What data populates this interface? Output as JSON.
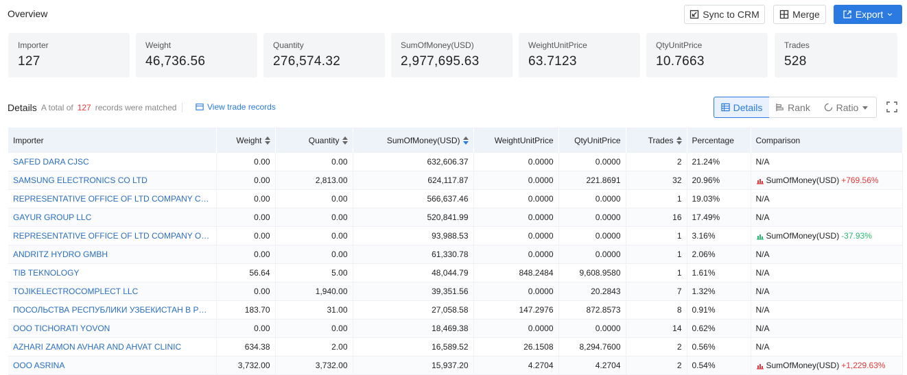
{
  "header": {
    "title": "Overview",
    "sync_label": "Sync to CRM",
    "merge_label": "Merge",
    "export_label": "Export"
  },
  "cards": [
    {
      "label": "Importer",
      "value": "127"
    },
    {
      "label": "Weight",
      "value": "46,736.56"
    },
    {
      "label": "Quantity",
      "value": "276,574.32"
    },
    {
      "label": "SumOfMoney(USD)",
      "value": "2,977,695.63"
    },
    {
      "label": "WeightUnitPrice",
      "value": "63.7123"
    },
    {
      "label": "QtyUnitPrice",
      "value": "10.7663"
    },
    {
      "label": "Trades",
      "value": "528"
    }
  ],
  "details": {
    "title": "Details",
    "total_prefix": "A total of",
    "total_count": "127",
    "total_suffix": "records were matched",
    "view_link": "View trade records",
    "tab_details": "Details",
    "tab_rank": "Rank",
    "tab_ratio": "Ratio"
  },
  "table": {
    "columns": [
      "Importer",
      "Weight",
      "Quantity",
      "SumOfMoney(USD)",
      "WeightUnitPrice",
      "QtyUnitPrice",
      "Trades",
      "Percentage",
      "Comparison"
    ],
    "rows": [
      {
        "importer": "SAFED DARA CJSC",
        "weight": "0.00",
        "quantity": "0.00",
        "sum": "632,606.37",
        "wup": "0.0000",
        "qup": "0.0000",
        "trades": "2",
        "pct": "21.24%",
        "cmp": "N/A",
        "cmp_metric": "",
        "cmp_change": "",
        "cmp_dir": ""
      },
      {
        "importer": "SAMSUNG ELECTRONICS CO LTD",
        "weight": "0.00",
        "quantity": "2,813.00",
        "sum": "624,117.87",
        "wup": "0.0000",
        "qup": "221.8691",
        "trades": "32",
        "pct": "20.96%",
        "cmp": "",
        "cmp_metric": "SumOfMoney(USD)",
        "cmp_change": "+769.56%",
        "cmp_dir": "up"
      },
      {
        "importer": "REPRESENTATIVE OFFICE OF LTD COMPANY CORPORA...",
        "weight": "0.00",
        "quantity": "0.00",
        "sum": "566,637.46",
        "wup": "0.0000",
        "qup": "0.0000",
        "trades": "1",
        "pct": "19.03%",
        "cmp": "N/A",
        "cmp_metric": "",
        "cmp_change": "",
        "cmp_dir": ""
      },
      {
        "importer": "GAYUR GROUP LLC",
        "weight": "0.00",
        "quantity": "0.00",
        "sum": "520,841.99",
        "wup": "0.0000",
        "qup": "0.0000",
        "trades": "16",
        "pct": "17.49%",
        "cmp": "N/A",
        "cmp_metric": "",
        "cmp_change": "",
        "cmp_dir": ""
      },
      {
        "importer": "REPRESENTATIVE OFFICE OF LTD COMPANY OF JIANG...",
        "weight": "0.00",
        "quantity": "0.00",
        "sum": "93,988.53",
        "wup": "0.0000",
        "qup": "0.0000",
        "trades": "1",
        "pct": "3.16%",
        "cmp": "",
        "cmp_metric": "SumOfMoney(USD)",
        "cmp_change": "-37.93%",
        "cmp_dir": "down"
      },
      {
        "importer": "ANDRITZ HYDRO GMBH",
        "weight": "0.00",
        "quantity": "0.00",
        "sum": "61,330.78",
        "wup": "0.0000",
        "qup": "0.0000",
        "trades": "1",
        "pct": "2.06%",
        "cmp": "N/A",
        "cmp_metric": "",
        "cmp_change": "",
        "cmp_dir": ""
      },
      {
        "importer": "TIB TEKNOLOGY",
        "weight": "56.64",
        "quantity": "5.00",
        "sum": "48,044.79",
        "wup": "848.2484",
        "qup": "9,608.9580",
        "trades": "1",
        "pct": "1.61%",
        "cmp": "N/A",
        "cmp_metric": "",
        "cmp_change": "",
        "cmp_dir": ""
      },
      {
        "importer": "TOJIKELECTROCOMPLECT LLC",
        "weight": "0.00",
        "quantity": "1,940.00",
        "sum": "39,351.56",
        "wup": "0.0000",
        "qup": "20.2843",
        "trades": "7",
        "pct": "1.32%",
        "cmp": "N/A",
        "cmp_metric": "",
        "cmp_change": "",
        "cmp_dir": ""
      },
      {
        "importer": "ПОСОЛЬСТВА РЕСПУБЛИКИ УЗБЕКИСТАН В РЕСПУБ...",
        "weight": "183.70",
        "quantity": "31.00",
        "sum": "27,058.58",
        "wup": "147.2976",
        "qup": "872.8573",
        "trades": "8",
        "pct": "0.91%",
        "cmp": "N/A",
        "cmp_metric": "",
        "cmp_change": "",
        "cmp_dir": ""
      },
      {
        "importer": "OOO TICHORATI YOVON",
        "weight": "0.00",
        "quantity": "0.00",
        "sum": "18,469.38",
        "wup": "0.0000",
        "qup": "0.0000",
        "trades": "14",
        "pct": "0.62%",
        "cmp": "N/A",
        "cmp_metric": "",
        "cmp_change": "",
        "cmp_dir": ""
      },
      {
        "importer": "AZHARI ZAMON AVHAR AND AHVAT CLINIC",
        "weight": "634.38",
        "quantity": "2.00",
        "sum": "16,589.52",
        "wup": "26.1508",
        "qup": "8,294.7600",
        "trades": "2",
        "pct": "0.56%",
        "cmp": "N/A",
        "cmp_metric": "",
        "cmp_change": "",
        "cmp_dir": ""
      },
      {
        "importer": "OOO ASRINA",
        "weight": "3,732.00",
        "quantity": "3,732.00",
        "sum": "15,937.20",
        "wup": "4.2704",
        "qup": "4.2704",
        "trades": "2",
        "pct": "0.54%",
        "cmp": "",
        "cmp_metric": "SumOfMoney(USD)",
        "cmp_change": "+1,229.63%",
        "cmp_dir": "up"
      }
    ]
  },
  "colors": {
    "accent": "#2a7ae2",
    "up": "#e4393c",
    "down": "#2bb673",
    "header_bg": "#eef3fa"
  }
}
